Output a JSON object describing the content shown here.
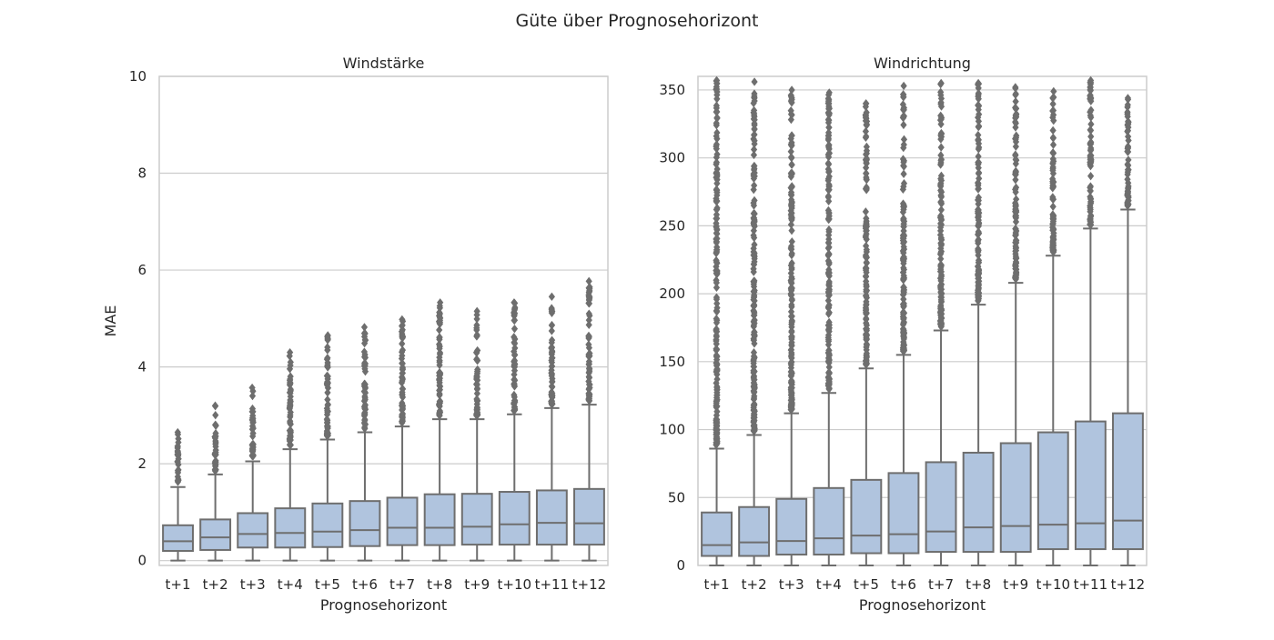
{
  "figure": {
    "title": "Güte über Prognosehorizont"
  },
  "colors": {
    "box_fill": "#b0c4de",
    "box_edge": "#6e6e6e",
    "grid": "#cccccc",
    "text": "#262626"
  },
  "chart_data": [
    {
      "type": "box",
      "title": "Windstärke",
      "xlabel": "Prognosehorizont",
      "ylabel": "MAE",
      "ylim": [
        -0.1,
        10
      ],
      "yticks": [
        0,
        2,
        4,
        6,
        8,
        10
      ],
      "grid": true,
      "categories": [
        "t+1",
        "t+2",
        "t+3",
        "t+4",
        "t+5",
        "t+6",
        "t+7",
        "t+8",
        "t+9",
        "t+10",
        "t+11",
        "t+12"
      ],
      "boxes": [
        {
          "whisker_low": 0.0,
          "q1": 0.2,
          "median": 0.4,
          "q3": 0.73,
          "whisker_high": 1.52,
          "flier_max": 2.65
        },
        {
          "whisker_low": 0.0,
          "q1": 0.22,
          "median": 0.48,
          "q3": 0.85,
          "whisker_high": 1.78,
          "flier_max": 3.2
        },
        {
          "whisker_low": 0.0,
          "q1": 0.27,
          "median": 0.55,
          "q3": 0.98,
          "whisker_high": 2.05,
          "flier_max": 3.57
        },
        {
          "whisker_low": 0.0,
          "q1": 0.27,
          "median": 0.57,
          "q3": 1.08,
          "whisker_high": 2.3,
          "flier_max": 4.3
        },
        {
          "whisker_low": 0.0,
          "q1": 0.28,
          "median": 0.6,
          "q3": 1.18,
          "whisker_high": 2.5,
          "flier_max": 4.65
        },
        {
          "whisker_low": 0.0,
          "q1": 0.3,
          "median": 0.63,
          "q3": 1.23,
          "whisker_high": 2.65,
          "flier_max": 4.82
        },
        {
          "whisker_low": 0.0,
          "q1": 0.32,
          "median": 0.68,
          "q3": 1.3,
          "whisker_high": 2.77,
          "flier_max": 4.98
        },
        {
          "whisker_low": 0.0,
          "q1": 0.32,
          "median": 0.68,
          "q3": 1.37,
          "whisker_high": 2.92,
          "flier_max": 5.33
        },
        {
          "whisker_low": 0.0,
          "q1": 0.33,
          "median": 0.7,
          "q3": 1.38,
          "whisker_high": 2.92,
          "flier_max": 5.15
        },
        {
          "whisker_low": 0.0,
          "q1": 0.33,
          "median": 0.75,
          "q3": 1.42,
          "whisker_high": 3.02,
          "flier_max": 5.33
        },
        {
          "whisker_low": 0.0,
          "q1": 0.33,
          "median": 0.78,
          "q3": 1.45,
          "whisker_high": 3.15,
          "flier_max": 5.45
        },
        {
          "whisker_low": 0.0,
          "q1": 0.33,
          "median": 0.77,
          "q3": 1.48,
          "whisker_high": 3.22,
          "flier_max": 5.77
        }
      ]
    },
    {
      "type": "box",
      "title": "Windrichtung",
      "xlabel": "Prognosehorizont",
      "ylabel": "",
      "ylim": [
        0,
        360
      ],
      "yticks": [
        0,
        50,
        100,
        150,
        200,
        250,
        300,
        350
      ],
      "grid": true,
      "categories": [
        "t+1",
        "t+2",
        "t+3",
        "t+4",
        "t+5",
        "t+6",
        "t+7",
        "t+8",
        "t+9",
        "t+10",
        "t+11",
        "t+12"
      ],
      "boxes": [
        {
          "whisker_low": 0,
          "q1": 7,
          "median": 15,
          "q3": 39,
          "whisker_high": 86,
          "flier_max": 357
        },
        {
          "whisker_low": 0,
          "q1": 7,
          "median": 17,
          "q3": 43,
          "whisker_high": 96,
          "flier_max": 356
        },
        {
          "whisker_low": 0,
          "q1": 8,
          "median": 18,
          "q3": 49,
          "whisker_high": 112,
          "flier_max": 350
        },
        {
          "whisker_low": 0,
          "q1": 8,
          "median": 20,
          "q3": 57,
          "whisker_high": 127,
          "flier_max": 348
        },
        {
          "whisker_low": 0,
          "q1": 9,
          "median": 22,
          "q3": 63,
          "whisker_high": 145,
          "flier_max": 340
        },
        {
          "whisker_low": 0,
          "q1": 9,
          "median": 23,
          "q3": 68,
          "whisker_high": 155,
          "flier_max": 353
        },
        {
          "whisker_low": 0,
          "q1": 10,
          "median": 25,
          "q3": 76,
          "whisker_high": 173,
          "flier_max": 355
        },
        {
          "whisker_low": 0,
          "q1": 10,
          "median": 28,
          "q3": 83,
          "whisker_high": 192,
          "flier_max": 355
        },
        {
          "whisker_low": 0,
          "q1": 10,
          "median": 29,
          "q3": 90,
          "whisker_high": 208,
          "flier_max": 352
        },
        {
          "whisker_low": 0,
          "q1": 12,
          "median": 30,
          "q3": 98,
          "whisker_high": 228,
          "flier_max": 349
        },
        {
          "whisker_low": 0,
          "q1": 12,
          "median": 31,
          "q3": 106,
          "whisker_high": 248,
          "flier_max": 357
        },
        {
          "whisker_low": 0,
          "q1": 12,
          "median": 33,
          "q3": 112,
          "whisker_high": 262,
          "flier_max": 344
        }
      ]
    }
  ]
}
